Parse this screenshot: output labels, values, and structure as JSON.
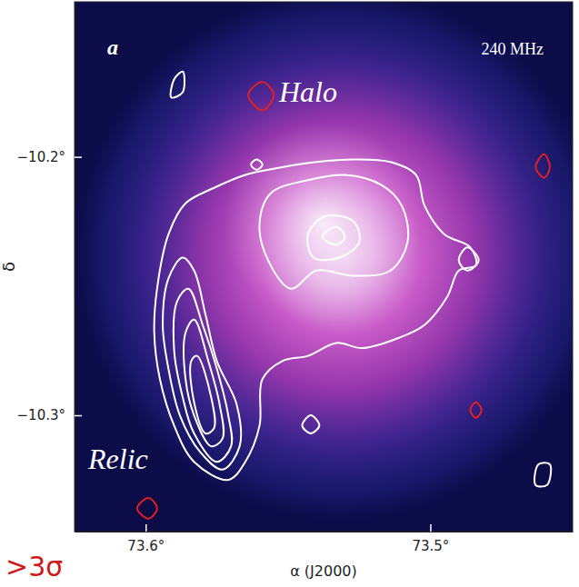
{
  "chart_data": {
    "type": "contour",
    "panel_label": "a",
    "annotations": [
      "240 MHz",
      "Halo",
      "Relic",
      ">3σ"
    ],
    "xlabel": "α (J2000)",
    "ylabel": "δ",
    "xlim": [
      73.625,
      73.45
    ],
    "ylim": [
      -10.345,
      -10.14
    ],
    "xticks": [
      {
        "value": 73.6,
        "label": "73.6°"
      },
      {
        "value": 73.5,
        "label": "73.5°"
      }
    ],
    "yticks": [
      {
        "value": -10.2,
        "label": "−10.2°"
      },
      {
        "value": -10.3,
        "label": "−10.3°"
      }
    ],
    "contours": [
      {
        "color": "#ffffff",
        "x": [
          73.571,
          73.583,
          73.59,
          73.595,
          73.597,
          73.596,
          73.592,
          73.586,
          73.576,
          73.565,
          73.552,
          73.54,
          73.527,
          73.514,
          73.505,
          73.502,
          73.495,
          73.486,
          73.484,
          73.49,
          73.494,
          73.502,
          73.511,
          73.524,
          73.533,
          73.543,
          73.552,
          73.559,
          73.56,
          73.565
        ],
        "y": [
          -10.325,
          -10.318,
          -10.304,
          -10.286,
          -10.268,
          -10.251,
          -10.23,
          -10.218,
          -10.212,
          -10.207,
          -10.204,
          -10.202,
          -10.201,
          -10.202,
          -10.207,
          -10.219,
          -10.23,
          -10.235,
          -10.242,
          -10.244,
          -10.254,
          -10.265,
          -10.27,
          -10.274,
          -10.272,
          -10.277,
          -10.279,
          -10.286,
          -10.304,
          -10.318
        ]
      },
      {
        "color": "#ffffff",
        "x": [
          73.573,
          73.581,
          73.588,
          73.592,
          73.594,
          73.592,
          73.587,
          73.583,
          73.579,
          73.575,
          73.568,
          73.567
        ],
        "y": [
          -10.321,
          -10.314,
          -10.3,
          -10.282,
          -10.265,
          -10.247,
          -10.239,
          -10.244,
          -10.261,
          -10.279,
          -10.296,
          -10.312
        ]
      },
      {
        "color": "#ffffff",
        "x": [
          73.575,
          73.583,
          73.587,
          73.59,
          73.589,
          73.585,
          73.58,
          73.575,
          73.571,
          73.57
        ],
        "y": [
          -10.318,
          -10.307,
          -10.293,
          -10.275,
          -10.256,
          -10.251,
          -10.265,
          -10.282,
          -10.3,
          -10.312
        ]
      },
      {
        "color": "#ffffff",
        "x": [
          73.577,
          73.583,
          73.586,
          73.586,
          73.583,
          73.578,
          73.574,
          73.573
        ],
        "y": [
          -10.312,
          -10.3,
          -10.286,
          -10.268,
          -10.263,
          -10.279,
          -10.296,
          -10.309
        ]
      },
      {
        "color": "#ffffff",
        "x": [
          73.579,
          73.583,
          73.584,
          73.582,
          73.577,
          73.576
        ],
        "y": [
          -10.307,
          -10.295,
          -10.279,
          -10.277,
          -10.293,
          -10.305
        ]
      },
      {
        "color": "#ffffff",
        "x": [
          73.556,
          73.543,
          73.53,
          73.517,
          73.51,
          73.508,
          73.514,
          73.527,
          73.54,
          73.549,
          73.557,
          73.56
        ],
        "y": [
          -10.214,
          -10.209,
          -10.207,
          -10.211,
          -10.219,
          -10.233,
          -10.244,
          -10.246,
          -10.244,
          -10.251,
          -10.24,
          -10.226
        ]
      },
      {
        "color": "#ffffff",
        "x": [
          73.543,
          73.537,
          73.527,
          73.525,
          73.532,
          73.541
        ],
        "y": [
          -10.23,
          -10.223,
          -10.225,
          -10.233,
          -10.239,
          -10.239
        ]
      },
      {
        "color": "#ffffff",
        "x": [
          73.538,
          73.533,
          73.53,
          73.533
        ],
        "y": [
          -10.231,
          -10.227,
          -10.231,
          -10.234
        ]
      },
      {
        "color": "#ffffff",
        "x": [
          73.49,
          73.487,
          73.483,
          73.487
        ],
        "y": [
          -10.24,
          -10.235,
          -10.24,
          -10.244
        ]
      },
      {
        "color": "#ffffff",
        "x": [
          73.545,
          73.542,
          73.539,
          73.542
        ],
        "y": [
          -10.304,
          -10.3,
          -10.304,
          -10.307
        ]
      },
      {
        "color": "#ffffff",
        "x": [
          73.591,
          73.59,
          73.587,
          73.587
        ],
        "y": [
          -10.177,
          -10.17,
          -10.167,
          -10.175
        ]
      },
      {
        "color": "#ffffff",
        "x": [
          73.463,
          73.462,
          73.458,
          73.459
        ],
        "y": [
          -10.327,
          -10.319,
          -10.319,
          -10.327
        ]
      },
      {
        "color": "#ffffff",
        "x": [
          73.563,
          73.561,
          73.559,
          73.561
        ],
        "y": [
          -10.203,
          -10.201,
          -10.203,
          -10.205
        ]
      },
      {
        "color": "#e02020",
        "x": [
          73.564,
          73.559,
          73.555,
          73.559
        ],
        "y": [
          -10.176,
          -10.171,
          -10.176,
          -10.182
        ]
      },
      {
        "color": "#e02020",
        "x": [
          73.463,
          73.46,
          73.458,
          73.46
        ],
        "y": [
          -10.204,
          -10.199,
          -10.204,
          -10.208
        ]
      },
      {
        "color": "#e02020",
        "x": [
          73.603,
          73.599,
          73.596,
          73.599
        ],
        "y": [
          -10.336,
          -10.332,
          -10.336,
          -10.34
        ]
      },
      {
        "color": "#e02020",
        "x": [
          73.486,
          73.484,
          73.482,
          73.484
        ],
        "y": [
          -10.298,
          -10.295,
          -10.298,
          -10.301
        ]
      }
    ]
  }
}
